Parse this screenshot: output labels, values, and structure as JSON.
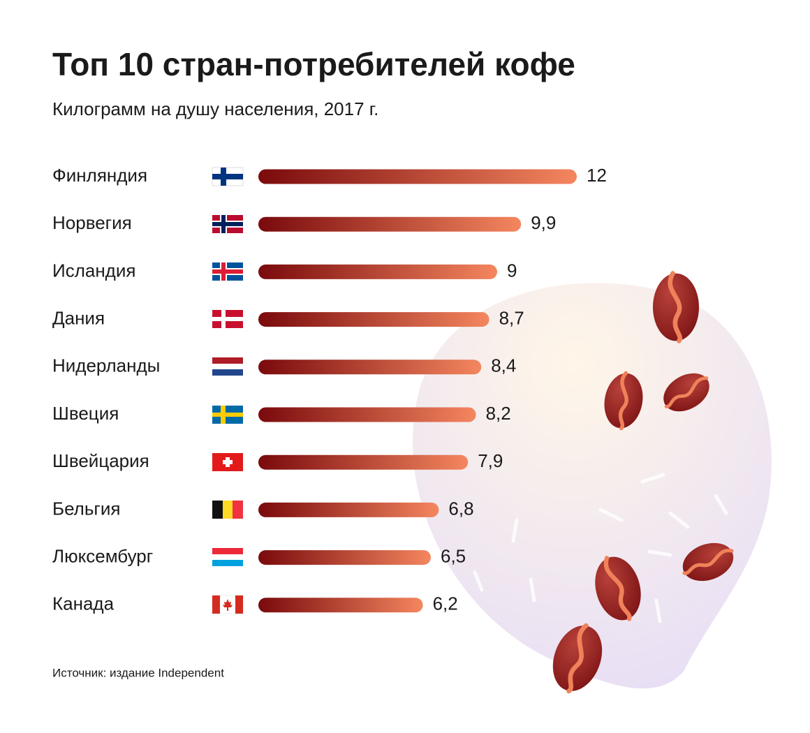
{
  "chart_data": {
    "type": "bar",
    "orientation": "horizontal",
    "title": "Топ 10 стран-потребителей кофе",
    "subtitle": "Килограмм на душу населения, 2017 г.",
    "source": "Источник: издание Independent",
    "categories": [
      "Финляндия",
      "Норвегия",
      "Исландия",
      "Дания",
      "Нидерланды",
      "Швеция",
      "Швейцария",
      "Бельгия",
      "Люксембург",
      "Канада"
    ],
    "values": [
      12,
      9.9,
      9,
      8.7,
      8.4,
      8.2,
      7.9,
      6.8,
      6.5,
      6.2
    ],
    "value_labels": [
      "12",
      "9,9",
      "9",
      "8,7",
      "8,4",
      "8,2",
      "7,9",
      "6,8",
      "6,5",
      "6,2"
    ],
    "colors": [
      "#7a0a0c",
      "#f4865f"
    ],
    "xlim": [
      0,
      12
    ]
  }
}
